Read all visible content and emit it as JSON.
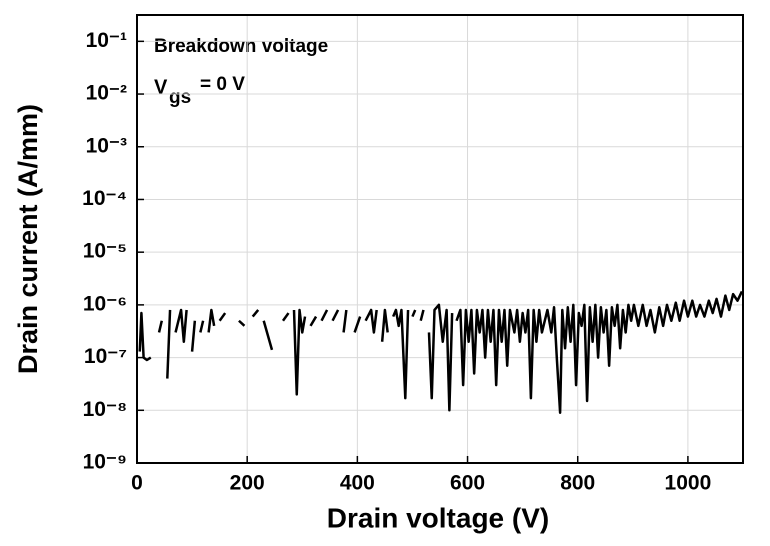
{
  "chart_data": {
    "type": "line",
    "xlabel": "Drain voltage (V)",
    "ylabel": "Drain current (A/mm)",
    "annotation": "Breakdown voltage",
    "annotation_symbol": "V",
    "annotation_subscript": "gs",
    "annotation_rest": "= 0 V",
    "log_y": true,
    "grid": true,
    "color": "#000000",
    "xlim": [
      0,
      1100
    ],
    "xticks": [
      0,
      200,
      400,
      600,
      800,
      1000
    ],
    "ylim": [
      1e-09,
      0.316
    ],
    "yticks": [
      {
        "value": 1e-09,
        "label": "10⁻⁹"
      },
      {
        "value": 1e-08,
        "label": "10⁻⁸"
      },
      {
        "value": 1e-07,
        "label": "10⁻⁷"
      },
      {
        "value": 1e-06,
        "label": "10⁻⁶"
      },
      {
        "value": 1e-05,
        "label": "10⁻⁵"
      },
      {
        "value": 0.0001,
        "label": "10⁻⁴"
      },
      {
        "value": 0.001,
        "label": "10⁻³"
      },
      {
        "value": 0.01,
        "label": "10⁻²"
      },
      {
        "value": 0.1,
        "label": "10⁻¹"
      }
    ],
    "x": [
      5,
      8,
      12,
      18,
      25,
      32,
      40,
      45,
      50,
      55,
      60,
      65,
      70,
      80,
      85,
      90,
      95,
      100,
      105,
      110,
      115,
      120,
      125,
      130,
      135,
      140,
      145,
      150,
      160,
      172,
      185,
      195,
      202,
      210,
      220,
      225,
      230,
      245,
      255,
      265,
      275,
      280,
      285,
      290,
      295,
      300,
      305,
      310,
      315,
      325,
      330,
      335,
      345,
      350,
      355,
      365,
      370,
      375,
      380,
      388,
      395,
      405,
      410,
      415,
      425,
      430,
      435,
      440,
      445,
      450,
      455,
      460,
      465,
      470,
      475,
      480,
      487,
      492,
      496,
      500,
      505,
      510,
      515,
      520,
      525,
      530,
      535,
      540,
      548,
      555,
      562,
      567,
      572,
      576,
      580,
      587,
      592,
      597,
      602,
      607,
      612,
      617,
      622,
      627,
      632,
      637,
      642,
      647,
      652,
      657,
      662,
      667,
      672,
      677,
      685,
      690,
      695,
      700,
      705,
      710,
      715,
      720,
      725,
      730,
      735,
      745,
      752,
      757,
      762,
      768,
      772,
      777,
      782,
      787,
      792,
      797,
      802,
      807,
      812,
      817,
      822,
      827,
      832,
      837,
      842,
      847,
      852,
      857,
      862,
      867,
      872,
      877,
      882,
      887,
      892,
      897,
      902,
      910,
      918,
      925,
      932,
      940,
      948,
      955,
      962,
      970,
      978,
      985,
      993,
      1000,
      1008,
      1015,
      1022,
      1030,
      1038,
      1045,
      1052,
      1060,
      1068,
      1075,
      1082,
      1090,
      1098
    ],
    "values": [
      1.3e-07,
      7e-07,
      1e-07,
      9e-08,
      1e-07,
      null,
      3e-07,
      5e-07,
      null,
      4e-08,
      8e-07,
      null,
      3e-07,
      8e-07,
      2e-07,
      8e-07,
      null,
      1.3e-07,
      5e-07,
      null,
      3e-07,
      5e-07,
      null,
      3e-07,
      8e-07,
      4e-07,
      null,
      5e-07,
      7e-07,
      null,
      5e-07,
      4e-07,
      null,
      6e-07,
      8e-07,
      null,
      5e-07,
      1.4e-07,
      null,
      5e-07,
      7e-07,
      null,
      8e-07,
      2e-08,
      8e-07,
      3e-07,
      6e-07,
      null,
      4e-07,
      6e-07,
      null,
      5e-07,
      8e-07,
      null,
      5e-07,
      8e-07,
      null,
      3e-07,
      8e-07,
      null,
      3e-07,
      6e-07,
      null,
      5e-07,
      8e-07,
      3e-07,
      8e-07,
      null,
      2e-07,
      8e-07,
      3e-07,
      null,
      6e-07,
      8e-07,
      4e-07,
      8e-07,
      1.7e-08,
      8e-07,
      null,
      6e-07,
      8e-07,
      null,
      5e-07,
      8e-07,
      null,
      3e-07,
      1.7e-08,
      8e-07,
      1e-06,
      2e-07,
      8e-07,
      1e-08,
      7e-07,
      null,
      5e-07,
      8e-07,
      3e-08,
      8e-07,
      2e-07,
      8e-07,
      5e-08,
      8e-07,
      3e-07,
      8e-07,
      1e-07,
      8e-07,
      2e-07,
      8e-07,
      3e-08,
      8e-07,
      2e-07,
      8e-07,
      7e-08,
      8e-07,
      3e-07,
      8e-07,
      2e-07,
      7e-07,
      3e-07,
      8e-07,
      1.7e-08,
      8e-07,
      2e-07,
      8e-07,
      3e-07,
      8e-07,
      3e-07,
      9e-07,
      1e-07,
      9e-09,
      8e-07,
      1.5e-07,
      9e-07,
      2e-07,
      1e-06,
      3e-08,
      7e-07,
      4e-07,
      1e-06,
      1.5e-08,
      9e-07,
      2e-07,
      1e-06,
      1e-07,
      9e-07,
      3e-07,
      8e-07,
      7e-08,
      9e-07,
      4e-07,
      1e-06,
      1.5e-07,
      8e-07,
      3e-07,
      1e-06,
      5e-07,
      1e-06,
      4e-07,
      1e-06,
      4e-07,
      8e-07,
      3e-07,
      9e-07,
      4e-07,
      1e-06,
      5e-07,
      1.1e-06,
      5e-07,
      1.2e-06,
      6e-07,
      1.2e-06,
      6e-07,
      1e-06,
      6e-07,
      1.2e-06,
      7e-07,
      1.3e-06,
      6e-07,
      1.5e-06,
      8e-07,
      1.6e-06,
      1.2e-06,
      1.8e-06
    ]
  }
}
